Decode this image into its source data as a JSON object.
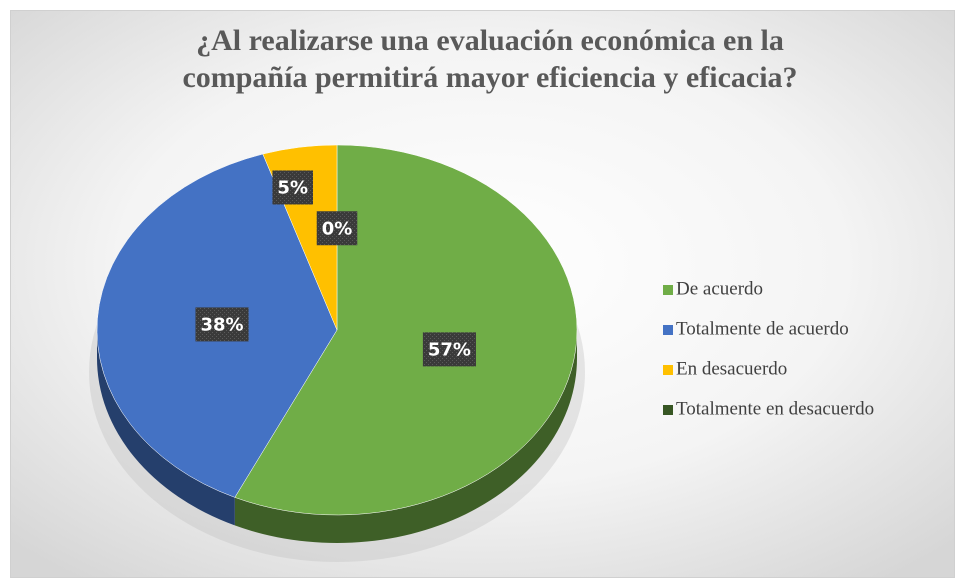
{
  "chart_data": {
    "type": "pie",
    "title": "¿Al realizarse una evaluación económica en la compañía permitirá mayor eficiencia y eficacia?",
    "categories": [
      "De acuerdo",
      "Totalmente de acuerdo",
      "En desacuerdo",
      "Totalmente en desacuerdo"
    ],
    "values": [
      57,
      38,
      5,
      0
    ],
    "value_labels": [
      "57%",
      "38%",
      "5%",
      "0%"
    ],
    "colors": [
      "#70ad47",
      "#4472c4",
      "#ffc000",
      "#375623"
    ],
    "legend": "right"
  }
}
